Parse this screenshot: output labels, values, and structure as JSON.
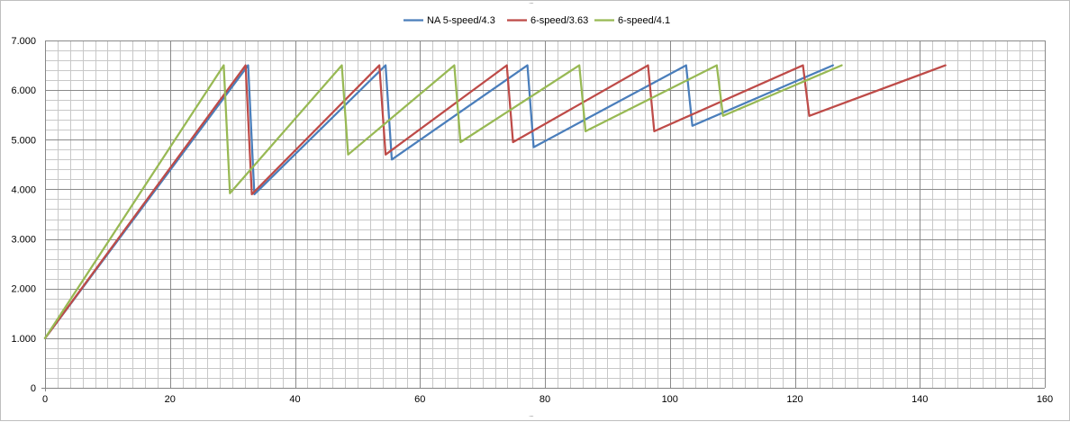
{
  "chart_data": {
    "type": "line",
    "title": "",
    "xlabel": "",
    "ylabel": "",
    "xlim": [
      0,
      160
    ],
    "ylim": [
      0,
      7000
    ],
    "x_ticks": [
      0,
      20,
      40,
      60,
      80,
      100,
      120,
      140,
      160
    ],
    "x_tick_labels": [
      "0",
      "20",
      "40",
      "60",
      "80",
      "100",
      "120",
      "140",
      "160"
    ],
    "y_ticks": [
      0,
      1000,
      2000,
      3000,
      4000,
      5000,
      6000,
      7000
    ],
    "y_tick_labels": [
      "0",
      "1.000",
      "2.000",
      "3.000",
      "4.000",
      "5.000",
      "6.000",
      "7.000"
    ],
    "grid": true,
    "legend_position": "top",
    "series": [
      {
        "name": "NA 5-speed/4.3",
        "color": "#4a7ebb",
        "x": [
          0,
          32.5,
          33.5,
          54.5,
          55.5,
          77.2,
          78.2,
          102.6,
          103.6,
          126.1
        ],
        "y": [
          1000,
          6500,
          3900,
          6500,
          4600,
          6500,
          4850,
          6500,
          5280,
          6500
        ]
      },
      {
        "name": "6-speed/3.63",
        "color": "#be4b48",
        "x": [
          0,
          32.1,
          33.1,
          53.5,
          54.5,
          73.9,
          74.9,
          96.5,
          97.5,
          121.3,
          122.3,
          144.1
        ],
        "y": [
          1000,
          6500,
          3900,
          6500,
          4700,
          6500,
          4950,
          6500,
          5170,
          6500,
          5480,
          6500
        ]
      },
      {
        "name": "6-speed/4.1",
        "color": "#98b954",
        "x": [
          0,
          28.6,
          29.6,
          47.5,
          48.5,
          65.5,
          66.5,
          85.5,
          86.5,
          107.5,
          108.5,
          127.5
        ],
        "y": [
          1000,
          6500,
          3920,
          6500,
          4700,
          6500,
          4950,
          6500,
          5170,
          6500,
          5480,
          6500
        ]
      }
    ]
  }
}
